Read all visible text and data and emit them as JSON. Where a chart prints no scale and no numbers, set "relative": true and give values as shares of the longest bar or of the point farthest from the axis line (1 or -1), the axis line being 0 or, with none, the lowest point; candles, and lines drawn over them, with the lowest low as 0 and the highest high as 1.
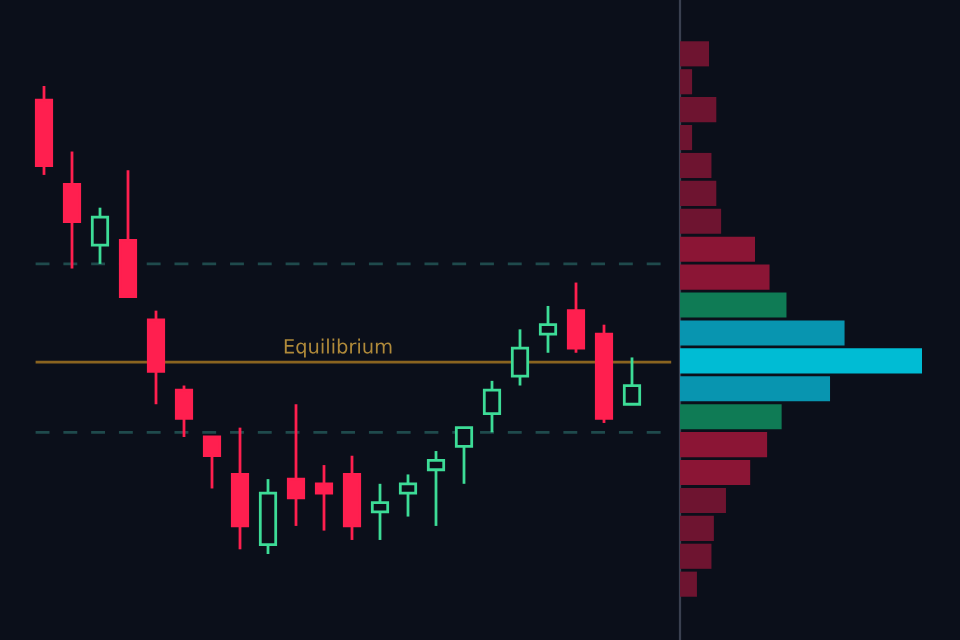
{
  "chart_data": [
    {
      "type": "candlestick",
      "relative": true,
      "categories": [
        null,
        null,
        null,
        null,
        null,
        null,
        null,
        null,
        null,
        null,
        null,
        null,
        null,
        null,
        null,
        null,
        null,
        null,
        null,
        null,
        null,
        null
      ],
      "ohlc": [
        [
          0.97,
          1.0,
          0.81,
          0.83
        ],
        [
          0.79,
          0.86,
          0.61,
          0.71
        ],
        [
          0.66,
          0.74,
          0.62,
          0.72
        ],
        [
          0.67,
          0.82,
          0.55,
          0.55
        ],
        [
          0.5,
          0.52,
          0.32,
          0.39
        ],
        [
          0.35,
          0.36,
          0.25,
          0.29
        ],
        [
          0.25,
          0.25,
          0.14,
          0.21
        ],
        [
          0.17,
          0.27,
          0.01,
          0.06
        ],
        [
          0.02,
          0.16,
          0.0,
          0.13
        ],
        [
          0.16,
          0.32,
          0.06,
          0.12
        ],
        [
          0.15,
          0.19,
          0.05,
          0.13
        ],
        [
          0.17,
          0.21,
          0.03,
          0.06
        ],
        [
          0.09,
          0.15,
          0.03,
          0.11
        ],
        [
          0.13,
          0.17,
          0.08,
          0.15
        ],
        [
          0.18,
          0.22,
          0.06,
          0.2
        ],
        [
          0.23,
          0.27,
          0.15,
          0.27
        ],
        [
          0.3,
          0.37,
          0.26,
          0.35
        ],
        [
          0.38,
          0.48,
          0.36,
          0.44
        ],
        [
          0.47,
          0.53,
          0.43,
          0.49
        ],
        [
          0.52,
          0.58,
          0.43,
          0.44
        ],
        [
          0.47,
          0.49,
          0.28,
          0.29
        ],
        [
          0.32,
          0.42,
          0.32,
          0.36
        ]
      ],
      "ref_lines": [
        {
          "axis": "y",
          "value": 0.41,
          "label": "Equilibrium",
          "color": "#8a6420",
          "line_style": "solid"
        },
        {
          "axis": "y",
          "value": 0.62,
          "color": "#1f4a4c",
          "line_style": "dashed"
        },
        {
          "axis": "y",
          "value": 0.26,
          "color": "#1f4a4c",
          "line_style": "dashed"
        }
      ]
    },
    {
      "type": "bar",
      "orientation": "horizontal",
      "relative": true,
      "categories": [
        null,
        null,
        null,
        null,
        null,
        null,
        null,
        null,
        null,
        null,
        null,
        null,
        null,
        null,
        null,
        null,
        null,
        null,
        null,
        null
      ],
      "values": [
        0.12,
        0.05,
        0.15,
        0.05,
        0.13,
        0.15,
        0.17,
        0.31,
        0.37,
        0.44,
        0.68,
        1,
        0.62,
        0.42,
        0.36,
        0.29,
        0.19,
        0.14,
        0.13,
        0.07
      ],
      "colors": [
        "#6e1430",
        "#6e1430",
        "#6e1430",
        "#6e1430",
        "#6e1430",
        "#6e1430",
        "#6e1430",
        "#8b1535",
        "#8b1535",
        "#0f7b55",
        "#0895b0",
        "#00bcd4",
        "#0895b0",
        "#0f7b55",
        "#8b1535",
        "#8b1535",
        "#6e1430",
        "#6e1430",
        "#6e1430",
        "#6e1430"
      ]
    }
  ]
}
